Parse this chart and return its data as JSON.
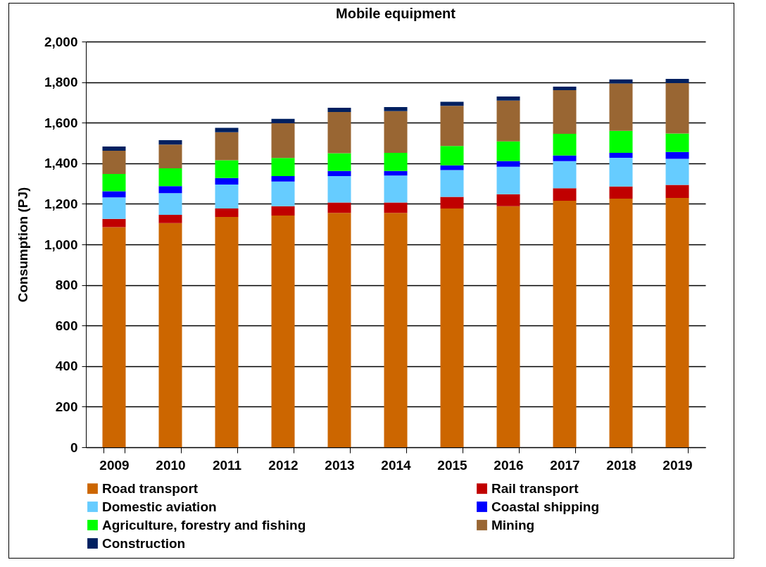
{
  "chart_data": {
    "type": "bar",
    "title": "Mobile equipment",
    "ylabel": "Consumption (PJ)",
    "stacked": true,
    "categories": [
      "2009",
      "2010",
      "2011",
      "2012",
      "2013",
      "2014",
      "2015",
      "2016",
      "2017",
      "2018",
      "2019"
    ],
    "series": [
      {
        "name": "Road transport",
        "color": "#cc6600",
        "values": [
          1085,
          1105,
          1135,
          1142,
          1155,
          1155,
          1177,
          1188,
          1215,
          1226,
          1229
        ]
      },
      {
        "name": "Rail transport",
        "color": "#c00000",
        "values": [
          41,
          41,
          42,
          46,
          52,
          52,
          57,
          59,
          62,
          60,
          64
        ]
      },
      {
        "name": "Domestic aviation",
        "color": "#66ccff",
        "values": [
          106,
          107,
          118,
          122,
          130,
          132,
          132,
          136,
          134,
          141,
          129
        ]
      },
      {
        "name": "Coastal shipping",
        "color": "#0000ff",
        "values": [
          30,
          34,
          32,
          27,
          25,
          23,
          24,
          28,
          27,
          24,
          34
        ]
      },
      {
        "name": "Agriculture, forestry and fishing",
        "color": "#00ff00",
        "values": [
          85,
          88,
          88,
          89,
          88,
          89,
          95,
          97,
          107,
          109,
          91
        ]
      },
      {
        "name": "Mining",
        "color": "#996633",
        "values": [
          115,
          117,
          138,
          171,
          203,
          206,
          198,
          201,
          215,
          233,
          248
        ]
      },
      {
        "name": "Construction",
        "color": "#002060",
        "values": [
          21,
          22,
          22,
          22,
          21,
          20,
          20,
          20,
          18,
          20,
          21
        ]
      }
    ],
    "ylim": [
      0,
      2000
    ],
    "yticks": [
      {
        "value": 0,
        "label": "0"
      },
      {
        "value": 200,
        "label": "200"
      },
      {
        "value": 400,
        "label": "400"
      },
      {
        "value": 600,
        "label": "600"
      },
      {
        "value": 800,
        "label": "800"
      },
      {
        "value": 1000,
        "label": "1,000"
      },
      {
        "value": 1200,
        "label": "1,200"
      },
      {
        "value": 1400,
        "label": "1,400"
      },
      {
        "value": 1600,
        "label": "1,600"
      },
      {
        "value": 1800,
        "label": "1,800"
      },
      {
        "value": 2000,
        "label": "2,000"
      }
    ],
    "grid": "y",
    "legend": "bottom"
  }
}
